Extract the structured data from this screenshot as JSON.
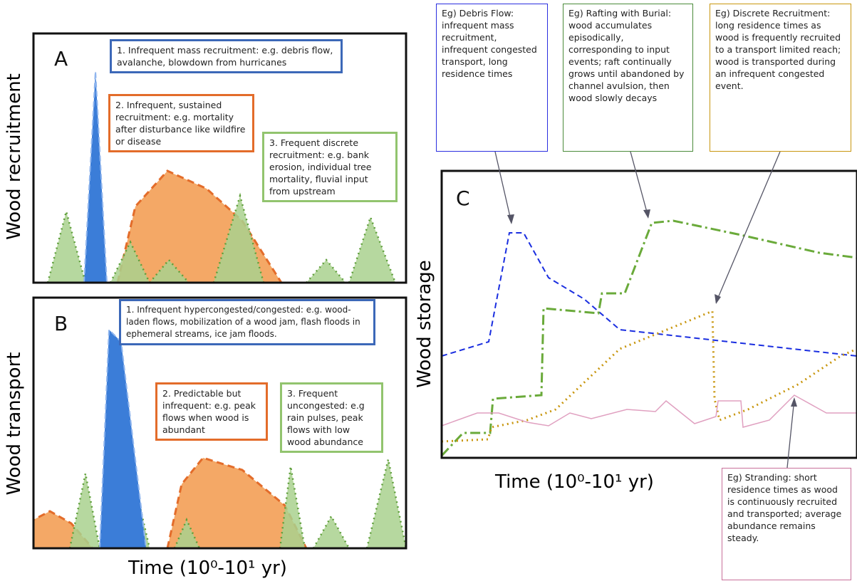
{
  "panel_a": {
    "label": "A",
    "y_label": "Wood recruitment",
    "notes": [
      "1. Infrequent mass recruitment: e.g. debris flow, avalanche, blowdown from hurricanes",
      "2. Infrequent, sustained recruitment: e.g. mortality after disturbance like wildfire or disease",
      "3. Frequent discrete recruitment: e.g. bank erosion, individual tree mortality, fluvial input from upstream"
    ]
  },
  "panel_b": {
    "label": "B",
    "y_label": "Wood transport",
    "x_label": "Time (10⁰-10¹ yr)",
    "notes": [
      "1. Infrequent hypercongested/congested:  e.g. wood-laden flows, mobilization of a wood jam, flash floods in ephemeral streams, ice jam floods.",
      "2. Predictable but infrequent: e.g. peak flows when wood is abundant",
      "3. Frequent uncongested: e.g rain pulses, peak flows with low wood abundance"
    ]
  },
  "panel_c": {
    "label": "C",
    "y_label": "Wood storage",
    "x_label": "Time (10⁰-10¹ yr)",
    "notes": [
      "Eg)  Debris Flow: infrequent mass recruitment, infrequent congested transport, long residence times",
      "Eg)  Rafting with Burial: wood accumulates episodically, corresponding to input events;  raft continually grows until abandoned by channel avulsion, then wood slowly decays",
      "Eg)  Discrete Recruitment:   long residence times as wood is frequently recruited to a transport limited reach; wood is transported during an infrequent congested event.",
      "Eg)  Stranding: short residence times as wood is continuously recruited and transported; average abundance remains steady."
    ]
  }
}
